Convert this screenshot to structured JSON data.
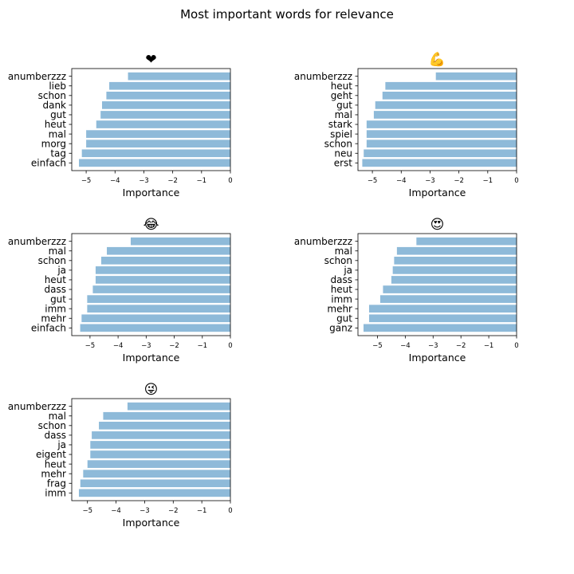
{
  "figure": {
    "suptitle": "Most important words for relevance"
  },
  "chart_data": [
    {
      "type": "bar",
      "orientation": "horizontal",
      "title": "❤",
      "xlabel": "Importance",
      "categories": [
        "anumberzzz",
        "lieb",
        "schon",
        "dank",
        "gut",
        "heut",
        "mal",
        "morg",
        "tag",
        "einfach"
      ],
      "values": [
        -3.55,
        -4.2,
        -4.3,
        -4.45,
        -4.5,
        -4.65,
        -5.0,
        -5.0,
        -5.15,
        -5.25
      ],
      "xlim": [
        -5.5,
        0
      ],
      "xticks": [
        -5,
        -4,
        -3,
        -2,
        -1,
        0
      ],
      "bar_color": "#8ebad9"
    },
    {
      "type": "bar",
      "orientation": "horizontal",
      "title": "💪",
      "xlabel": "Importance",
      "categories": [
        "anumberzzz",
        "heut",
        "geht",
        "gut",
        "mal",
        "stark",
        "spiel",
        "schon",
        "neu",
        "erst"
      ],
      "values": [
        -2.8,
        -4.55,
        -4.65,
        -4.9,
        -4.95,
        -5.2,
        -5.2,
        -5.2,
        -5.3,
        -5.35
      ],
      "xlim": [
        -5.5,
        0
      ],
      "xticks": [
        -5,
        -4,
        -3,
        -2,
        -1,
        0
      ],
      "bar_color": "#8ebad9"
    },
    {
      "type": "bar",
      "orientation": "horizontal",
      "title": "😂",
      "xlabel": "Importance",
      "categories": [
        "anumberzzz",
        "mal",
        "schon",
        "ja",
        "heut",
        "dass",
        "gut",
        "imm",
        "mehr",
        "einfach"
      ],
      "values": [
        -3.55,
        -4.4,
        -4.6,
        -4.8,
        -4.8,
        -4.9,
        -5.1,
        -5.1,
        -5.3,
        -5.35
      ],
      "xlim": [
        -5.65,
        0
      ],
      "xticks": [
        -5,
        -4,
        -3,
        -2,
        -1,
        0
      ],
      "bar_color": "#8ebad9"
    },
    {
      "type": "bar",
      "orientation": "horizontal",
      "title": "😍",
      "xlabel": "Importance",
      "categories": [
        "anumberzzz",
        "mal",
        "schon",
        "ja",
        "dass",
        "heut",
        "imm",
        "mehr",
        "gut",
        "ganz"
      ],
      "values": [
        -3.6,
        -4.3,
        -4.4,
        -4.45,
        -4.5,
        -4.8,
        -4.9,
        -5.3,
        -5.3,
        -5.5
      ],
      "xlim": [
        -5.7,
        0
      ],
      "xticks": [
        -5,
        -4,
        -3,
        -2,
        -1,
        0
      ],
      "bar_color": "#8ebad9"
    },
    {
      "type": "bar",
      "orientation": "horizontal",
      "title": "😜",
      "xlabel": "Importance",
      "categories": [
        "anumberzzz",
        "mal",
        "schon",
        "dass",
        "ja",
        "eigent",
        "heut",
        "mehr",
        "frag",
        "imm"
      ],
      "values": [
        -3.6,
        -4.45,
        -4.6,
        -4.85,
        -4.9,
        -4.9,
        -5.0,
        -5.15,
        -5.25,
        -5.3
      ],
      "xlim": [
        -5.55,
        0
      ],
      "xticks": [
        -5,
        -4,
        -3,
        -2,
        -1,
        0
      ],
      "bar_color": "#8ebad9"
    }
  ]
}
